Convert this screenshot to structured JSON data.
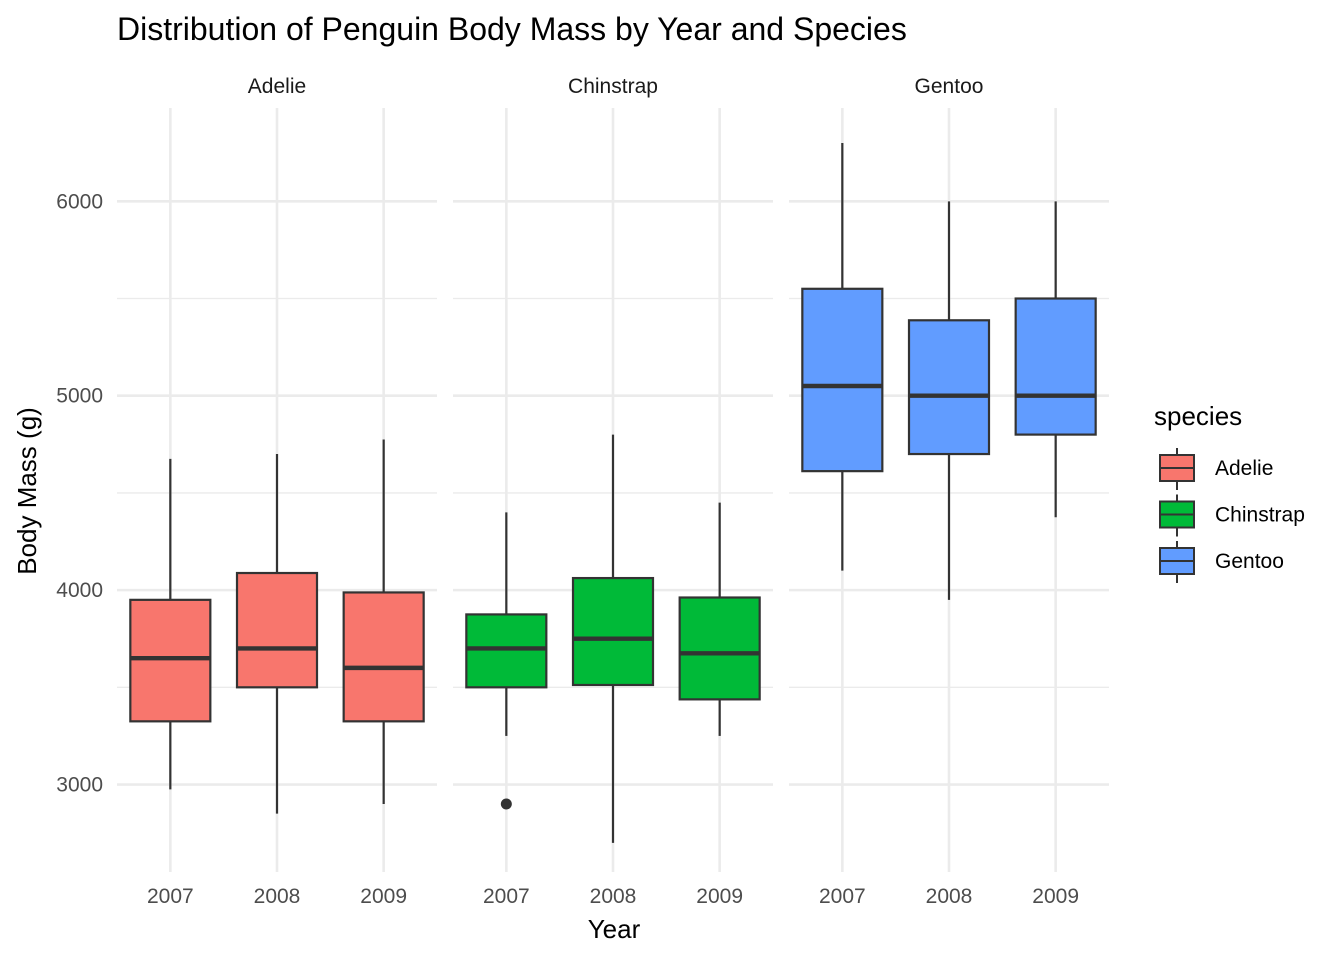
{
  "chart_data": {
    "type": "boxplot",
    "title": "Distribution of Penguin Body Mass by Year and Species",
    "xlabel": "Year",
    "ylabel": "Body Mass (g)",
    "ylim": [
      2550,
      6480
    ],
    "y_ticks": [
      "3000",
      "4000",
      "5000",
      "6000"
    ],
    "y_tick_values": [
      3000,
      4000,
      5000,
      6000
    ],
    "y_minor_values": [
      3500,
      4500,
      5500
    ],
    "grid": true,
    "legend": {
      "title": "species",
      "placement": "right"
    },
    "x_categories": [
      "2007",
      "2008",
      "2009"
    ],
    "panels": [
      {
        "species": "Adelie",
        "color": "#F8766D",
        "boxes": [
          {
            "year": "2007",
            "whisker_low": 2975,
            "q1": 3325,
            "median": 3650,
            "q3": 3950,
            "whisker_high": 4675,
            "outliers": []
          },
          {
            "year": "2008",
            "whisker_low": 2850,
            "q1": 3500,
            "median": 3700,
            "q3": 4088,
            "whisker_high": 4700,
            "outliers": []
          },
          {
            "year": "2009",
            "whisker_low": 2900,
            "q1": 3325,
            "median": 3600,
            "q3": 3988,
            "whisker_high": 4775,
            "outliers": []
          }
        ]
      },
      {
        "species": "Chinstrap",
        "color": "#00BA38",
        "boxes": [
          {
            "year": "2007",
            "whisker_low": 3250,
            "q1": 3500,
            "median": 3700,
            "q3": 3875,
            "whisker_high": 4400,
            "outliers": [
              2900
            ]
          },
          {
            "year": "2008",
            "whisker_low": 2700,
            "q1": 3512,
            "median": 3750,
            "q3": 4062,
            "whisker_high": 4800,
            "outliers": []
          },
          {
            "year": "2009",
            "whisker_low": 3250,
            "q1": 3438,
            "median": 3675,
            "q3": 3962,
            "whisker_high": 4450,
            "outliers": []
          }
        ]
      },
      {
        "species": "Gentoo",
        "color": "#619CFF",
        "boxes": [
          {
            "year": "2007",
            "whisker_low": 4100,
            "q1": 4612,
            "median": 5050,
            "q3": 5550,
            "whisker_high": 6300,
            "outliers": []
          },
          {
            "year": "2008",
            "whisker_low": 3950,
            "q1": 4700,
            "median": 5000,
            "q3": 5388,
            "whisker_high": 6000,
            "outliers": []
          },
          {
            "year": "2009",
            "whisker_low": 4375,
            "q1": 4800,
            "median": 5000,
            "q3": 5500,
            "whisker_high": 6000,
            "outliers": []
          }
        ]
      }
    ]
  }
}
